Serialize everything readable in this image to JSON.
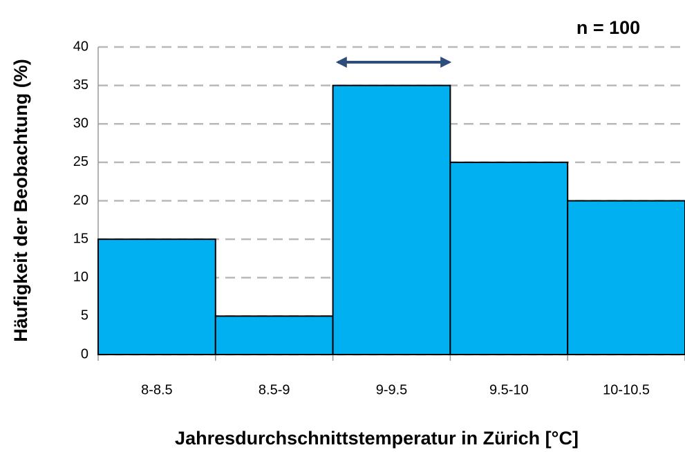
{
  "chart_data": {
    "type": "bar",
    "annotation": "n = 100",
    "x_label": "Jahresdurchschnittstemperatur in Zürich [°C]",
    "y_label": "Häufigkeit der Beobachtung (%)",
    "categories": [
      "8-8.5",
      "8.5-9",
      "9-9.5",
      "9.5-10",
      "10-10.5"
    ],
    "values": [
      15,
      5,
      35,
      25,
      20
    ],
    "color": "#00b0f0",
    "ylim": [
      0,
      40
    ],
    "yticks": [
      0,
      5,
      10,
      15,
      20,
      25,
      30,
      35,
      40
    ],
    "grid": true
  }
}
